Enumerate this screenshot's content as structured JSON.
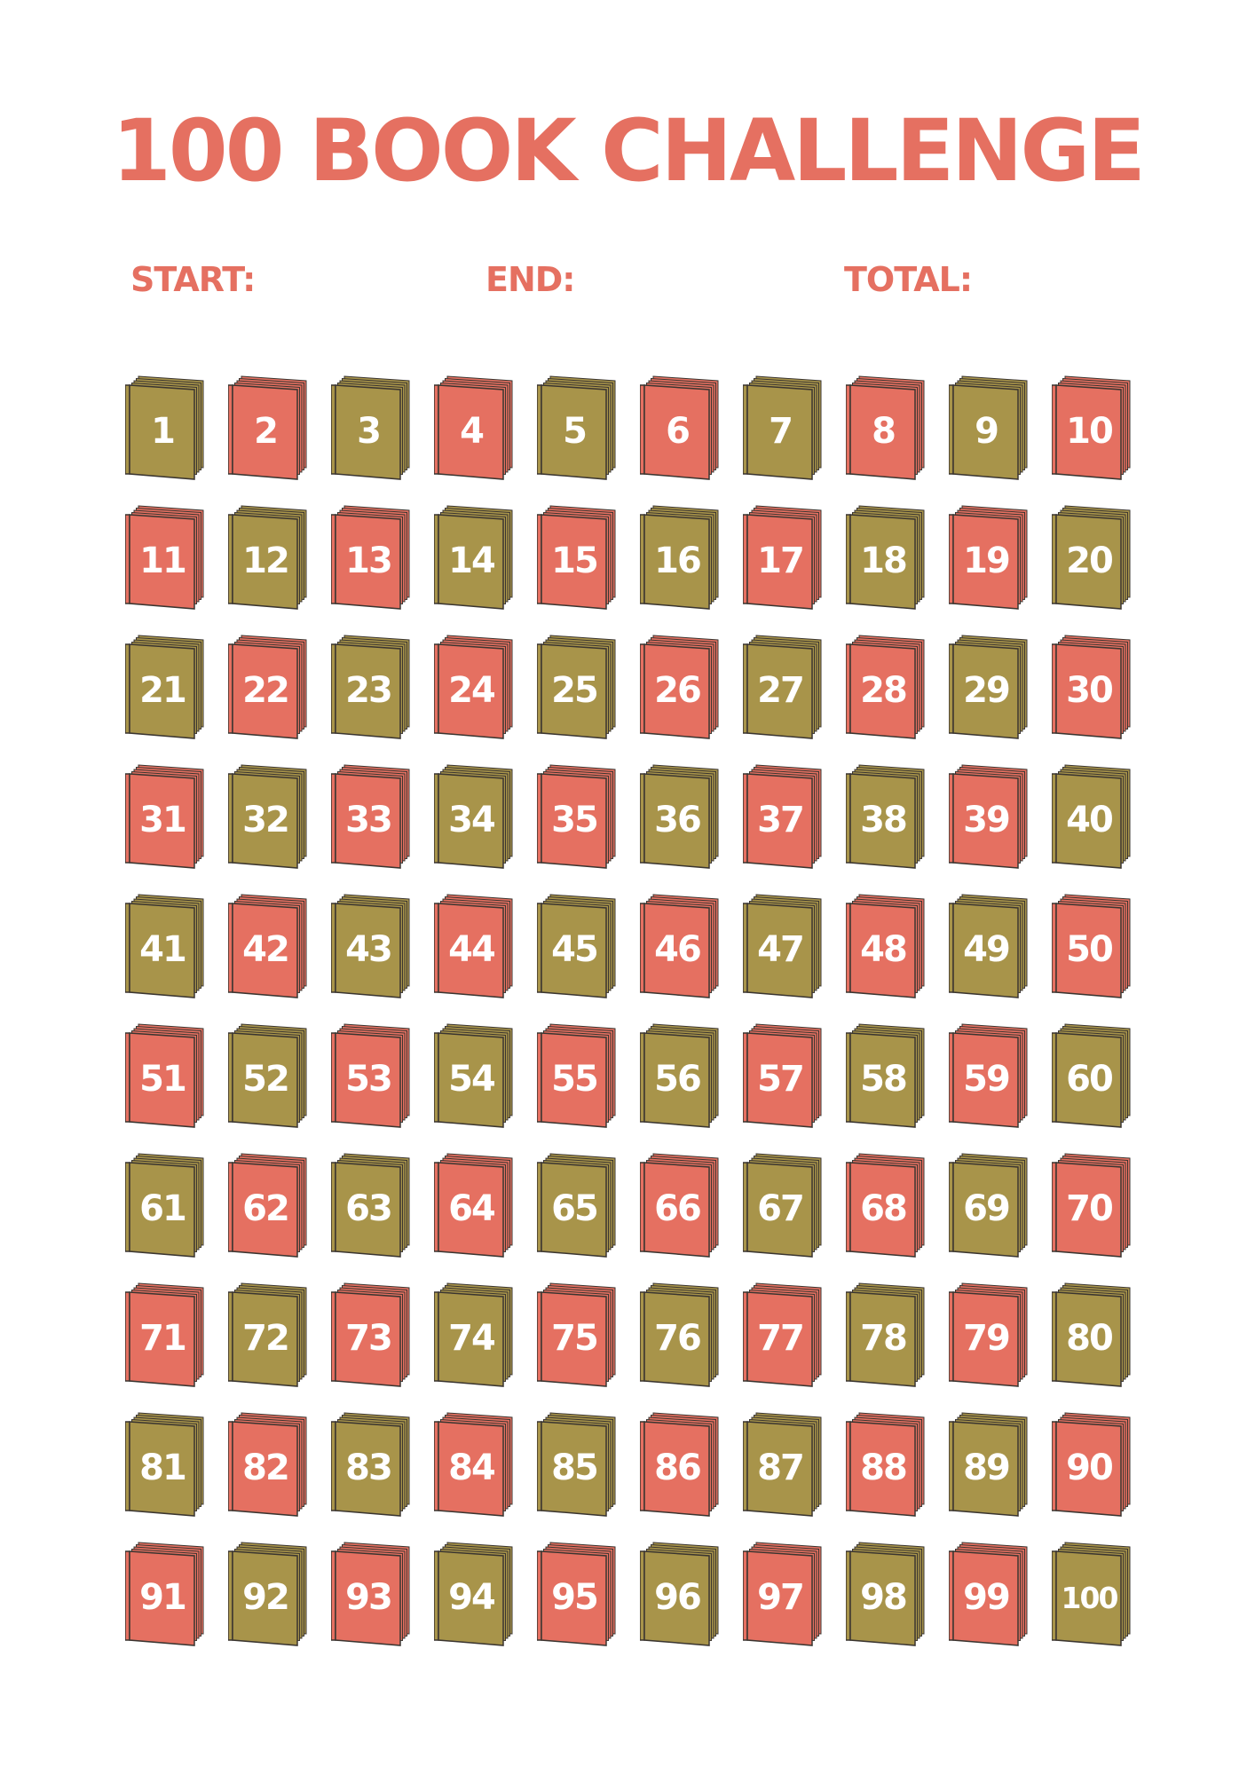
{
  "title": "100 BOOK CHALLENGE",
  "fields": {
    "start": "START:",
    "end": "END:",
    "total": "TOTAL:"
  },
  "colors": {
    "accent": "#E57061",
    "olive": "#A8944A",
    "red": "#E57061"
  },
  "books": [
    "1",
    "2",
    "3",
    "4",
    "5",
    "6",
    "7",
    "8",
    "9",
    "10",
    "11",
    "12",
    "13",
    "14",
    "15",
    "16",
    "17",
    "18",
    "19",
    "20",
    "21",
    "22",
    "23",
    "24",
    "25",
    "26",
    "27",
    "28",
    "29",
    "30",
    "31",
    "32",
    "33",
    "34",
    "35",
    "36",
    "37",
    "38",
    "39",
    "40",
    "41",
    "42",
    "43",
    "44",
    "45",
    "46",
    "47",
    "48",
    "49",
    "50",
    "51",
    "52",
    "53",
    "54",
    "55",
    "56",
    "57",
    "58",
    "59",
    "60",
    "61",
    "62",
    "63",
    "64",
    "65",
    "66",
    "67",
    "68",
    "69",
    "70",
    "71",
    "72",
    "73",
    "74",
    "75",
    "76",
    "77",
    "78",
    "79",
    "80",
    "81",
    "82",
    "83",
    "84",
    "85",
    "86",
    "87",
    "88",
    "89",
    "90",
    "91",
    "92",
    "93",
    "94",
    "95",
    "96",
    "97",
    "98",
    "99",
    "100"
  ]
}
